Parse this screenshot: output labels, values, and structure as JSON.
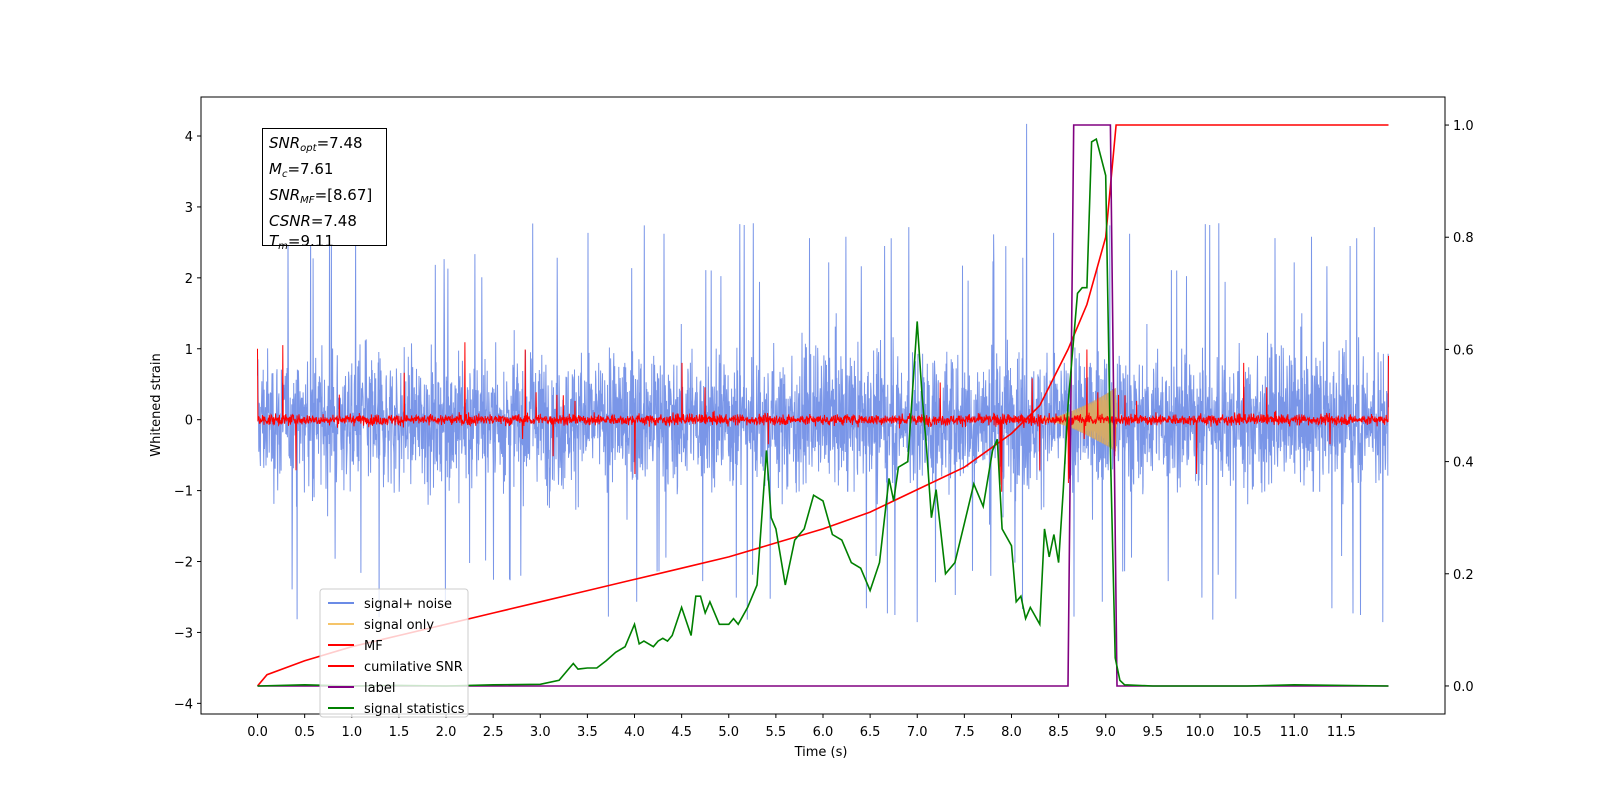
{
  "chart_data": {
    "type": "line",
    "xlabel": "Time (s)",
    "ylabel": "Whitened strain",
    "xlim": [
      -0.6,
      12.6
    ],
    "ylim": [
      -4.15,
      4.55
    ],
    "y2lim": [
      -0.05,
      1.05
    ],
    "xticks": [
      0.0,
      0.5,
      1.0,
      1.5,
      2.0,
      2.5,
      3.0,
      3.5,
      4.0,
      4.5,
      5.0,
      5.5,
      6.0,
      6.5,
      7.0,
      7.5,
      8.0,
      8.5,
      9.0,
      9.5,
      10.0,
      10.5,
      11.0,
      11.5
    ],
    "xtick_labels": [
      "0.0",
      "0.5",
      "1.0",
      "1.5",
      "2.0",
      "2.5",
      "3.0",
      "3.5",
      "4.0",
      "4.5",
      "5.0",
      "5.5",
      "6.0",
      "6.5",
      "7.0",
      "7.5",
      "8.0",
      "8.5",
      "9.0",
      "9.5",
      "10.0",
      "10.5",
      "11.0",
      "11.5"
    ],
    "yticks": [
      4,
      3,
      2,
      1,
      0,
      -1,
      -2,
      -3,
      -4
    ],
    "ytick_labels": [
      "4",
      "3",
      "2",
      "1",
      "0",
      "−1",
      "−2",
      "−3",
      "−4"
    ],
    "y2ticks": [
      1.0,
      0.8,
      0.6,
      0.4,
      0.2,
      0.0
    ],
    "y2tick_labels": [
      "1.0",
      "0.8",
      "0.6",
      "0.4",
      "0.2",
      "0.0"
    ],
    "legend_position": "lower-left",
    "annotation": {
      "snr_opt": {
        "label": "SNR",
        "sub": "opt",
        "value": "=7.48"
      },
      "mc": {
        "label": "M",
        "sub": "c",
        "value": "=7.61"
      },
      "snr_mf": {
        "label": "SNR",
        "sub": "MF",
        "value": "=[8.67]"
      },
      "csnr": {
        "label": "CSNR",
        "sub": "",
        "value": "=7.48"
      },
      "tm": {
        "label": "T",
        "sub": "m",
        "value": "=9.11"
      }
    },
    "series": [
      {
        "name": "signal+ noise",
        "axis": "left",
        "color": "#6b8be6",
        "kind": "noise",
        "t_start": 0.0,
        "t_end": 12.0,
        "amplitude": 1.2,
        "peak": 4.17
      },
      {
        "name": "signal only",
        "axis": "left",
        "color": "#f5c469",
        "kind": "chirp",
        "t_start": 8.3,
        "t_end": 9.11,
        "peak": 0.45
      },
      {
        "name": "MF",
        "axis": "left",
        "color": "#ff0000",
        "kind": "noise",
        "t_start": 0.0,
        "t_end": 12.0,
        "amplitude": 0.1,
        "edge_values": [
          1.0,
          0.9
        ]
      },
      {
        "name": "cumilative SNR",
        "axis": "right",
        "color": "#ff0000",
        "kind": "curve",
        "x": [
          0.0,
          0.1,
          0.5,
          1.0,
          1.5,
          2.0,
          2.5,
          3.0,
          3.5,
          4.0,
          4.5,
          5.0,
          5.5,
          6.0,
          6.5,
          7.0,
          7.5,
          8.0,
          8.3,
          8.6,
          8.8,
          9.0,
          9.11,
          9.5,
          10.0,
          11.0,
          12.0
        ],
        "y": [
          0.0,
          0.02,
          0.045,
          0.07,
          0.09,
          0.11,
          0.13,
          0.15,
          0.17,
          0.19,
          0.21,
          0.23,
          0.255,
          0.28,
          0.31,
          0.35,
          0.39,
          0.45,
          0.5,
          0.6,
          0.68,
          0.8,
          1.0,
          1.0,
          1.0,
          1.0,
          1.0
        ]
      },
      {
        "name": "label",
        "axis": "right",
        "color": "#800080",
        "kind": "step",
        "x": [
          0.0,
          8.6,
          8.66,
          9.05,
          9.12,
          12.0
        ],
        "y": [
          0.0,
          0.0,
          1.0,
          1.0,
          0.0,
          0.0
        ]
      },
      {
        "name": "signal statistics",
        "axis": "right",
        "color": "#008000",
        "kind": "line",
        "x": [
          0.0,
          0.5,
          1.0,
          1.5,
          2.0,
          2.5,
          3.0,
          3.2,
          3.3,
          3.35,
          3.4,
          3.5,
          3.6,
          3.7,
          3.8,
          3.9,
          4.0,
          4.05,
          4.1,
          4.2,
          4.25,
          4.3,
          4.35,
          4.4,
          4.5,
          4.6,
          4.65,
          4.7,
          4.75,
          4.8,
          4.9,
          5.0,
          5.05,
          5.1,
          5.2,
          5.3,
          5.4,
          5.45,
          5.5,
          5.6,
          5.7,
          5.8,
          5.9,
          6.0,
          6.1,
          6.2,
          6.3,
          6.4,
          6.5,
          6.6,
          6.7,
          6.75,
          6.8,
          6.9,
          7.0,
          7.05,
          7.1,
          7.15,
          7.2,
          7.3,
          7.4,
          7.5,
          7.6,
          7.7,
          7.75,
          7.8,
          7.85,
          7.9,
          8.0,
          8.05,
          8.1,
          8.15,
          8.2,
          8.3,
          8.35,
          8.4,
          8.45,
          8.5,
          8.55,
          8.6,
          8.7,
          8.75,
          8.8,
          8.85,
          8.9,
          9.0,
          9.05,
          9.1,
          9.15,
          9.2,
          9.5,
          10.0,
          10.5,
          11.0,
          12.0
        ],
        "y": [
          0.0,
          0.002,
          0.0,
          0.001,
          0.0,
          0.002,
          0.003,
          0.01,
          0.03,
          0.04,
          0.03,
          0.032,
          0.032,
          0.045,
          0.06,
          0.07,
          0.11,
          0.075,
          0.08,
          0.07,
          0.08,
          0.085,
          0.08,
          0.09,
          0.14,
          0.09,
          0.16,
          0.16,
          0.13,
          0.15,
          0.11,
          0.11,
          0.12,
          0.11,
          0.14,
          0.18,
          0.42,
          0.3,
          0.28,
          0.18,
          0.26,
          0.28,
          0.34,
          0.33,
          0.27,
          0.26,
          0.22,
          0.21,
          0.17,
          0.22,
          0.37,
          0.33,
          0.39,
          0.4,
          0.65,
          0.52,
          0.42,
          0.3,
          0.35,
          0.2,
          0.22,
          0.29,
          0.36,
          0.32,
          0.37,
          0.42,
          0.44,
          0.28,
          0.25,
          0.15,
          0.16,
          0.12,
          0.14,
          0.11,
          0.28,
          0.23,
          0.27,
          0.22,
          0.35,
          0.5,
          0.7,
          0.71,
          0.71,
          0.97,
          0.975,
          0.91,
          0.42,
          0.05,
          0.01,
          0.002,
          0.0,
          0.0,
          0.0,
          0.002,
          0.0
        ]
      }
    ]
  }
}
